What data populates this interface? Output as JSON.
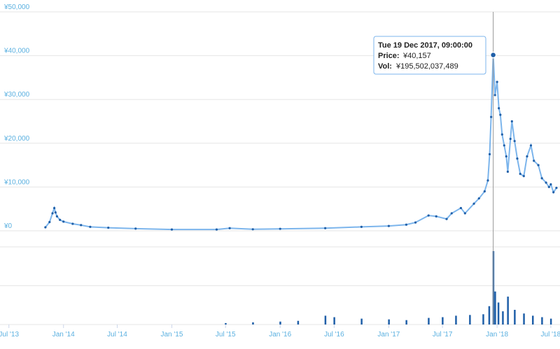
{
  "chart_data": [
    {
      "type": "line",
      "series": [
        {
          "name": "Price",
          "x": [
            "2013-11-01",
            "2013-11-15",
            "2013-11-25",
            "2013-12-01",
            "2013-12-05",
            "2013-12-10",
            "2013-12-20",
            "2014-01-01",
            "2014-02-01",
            "2014-03-01",
            "2014-04-01",
            "2014-06-01",
            "2014-09-01",
            "2015-01-01",
            "2015-06-01",
            "2015-07-15",
            "2015-10-01",
            "2016-01-01",
            "2016-06-01",
            "2016-10-01",
            "2017-01-01",
            "2017-03-01",
            "2017-04-01",
            "2017-05-15",
            "2017-06-10",
            "2017-07-15",
            "2017-08-01",
            "2017-09-01",
            "2017-09-15",
            "2017-10-15",
            "2017-11-01",
            "2017-11-20",
            "2017-12-01",
            "2017-12-07",
            "2017-12-12",
            "2017-12-19",
            "2017-12-25",
            "2018-01-01",
            "2018-01-07",
            "2018-01-12",
            "2018-01-18",
            "2018-01-25",
            "2018-02-01",
            "2018-02-06",
            "2018-02-15",
            "2018-02-20",
            "2018-03-01",
            "2018-03-10",
            "2018-03-20",
            "2018-04-01",
            "2018-04-12",
            "2018-04-25",
            "2018-05-05",
            "2018-05-20",
            "2018-06-01",
            "2018-06-15",
            "2018-06-25",
            "2018-07-01",
            "2018-07-10",
            "2018-07-20"
          ],
          "y": [
            800,
            2000,
            4000,
            5200,
            4200,
            3300,
            2500,
            2100,
            1600,
            1300,
            900,
            700,
            500,
            300,
            300,
            600,
            350,
            450,
            600,
            900,
            1100,
            1400,
            1900,
            3500,
            3300,
            2700,
            4000,
            5200,
            4000,
            6200,
            7400,
            9000,
            11500,
            17500,
            26000,
            40157,
            31000,
            34000,
            28000,
            26500,
            22000,
            19500,
            17000,
            13500,
            21000,
            25000,
            20500,
            16500,
            13000,
            12500,
            17000,
            19500,
            16000,
            15000,
            12000,
            11000,
            10000,
            10600,
            8800,
            9800
          ],
          "marker": "circle"
        }
      ],
      "ylabel": "",
      "ylim": [
        0,
        50000
      ],
      "yticks": [
        "¥0",
        "¥10,000",
        "¥20,000",
        "¥30,000",
        "¥40,000",
        "¥50,000"
      ],
      "xlim": [
        "2013-06-01",
        "2018-08-01"
      ],
      "xticks": [
        {
          "date": "2013-07-01",
          "label": "Jul '13"
        },
        {
          "date": "2014-01-01",
          "label": "Jan '14"
        },
        {
          "date": "2014-07-01",
          "label": "Jul '14"
        },
        {
          "date": "2015-01-01",
          "label": "Jan '15"
        },
        {
          "date": "2015-07-01",
          "label": "Jul '15"
        },
        {
          "date": "2016-01-01",
          "label": "Jan '16"
        },
        {
          "date": "2016-07-01",
          "label": "Jul '16"
        },
        {
          "date": "2017-01-01",
          "label": "Jan '17"
        },
        {
          "date": "2017-07-01",
          "label": "Jul '17"
        },
        {
          "date": "2018-01-01",
          "label": "Jan '18"
        },
        {
          "date": "2018-07-01",
          "label": "Jul '18"
        }
      ],
      "grid": true,
      "color": "#1f5fa8"
    },
    {
      "type": "bar",
      "series": [
        {
          "name": "Vol",
          "x": [
            "2015-07-01",
            "2015-10-01",
            "2016-01-01",
            "2016-03-01",
            "2016-06-01",
            "2016-07-01",
            "2016-10-01",
            "2017-01-01",
            "2017-03-01",
            "2017-05-15",
            "2017-07-01",
            "2017-08-15",
            "2017-10-01",
            "2017-11-15",
            "2017-12-05",
            "2017-12-19",
            "2017-12-25",
            "2018-01-05",
            "2018-01-20",
            "2018-02-06",
            "2018-03-01",
            "2018-04-01",
            "2018-05-01",
            "2018-06-01",
            "2018-07-01"
          ],
          "values": [
            0.02,
            0.03,
            0.04,
            0.05,
            0.12,
            0.1,
            0.08,
            0.07,
            0.06,
            0.09,
            0.1,
            0.12,
            0.13,
            0.14,
            0.25,
            1.0,
            0.45,
            0.3,
            0.18,
            0.38,
            0.2,
            0.15,
            0.12,
            0.1,
            0.08
          ]
        }
      ],
      "color": "#1f5fa8"
    }
  ],
  "tooltip": {
    "title": "Tue 19 Dec 2017, 09:00:00",
    "price_label": "Price:",
    "price_value": "¥40,157",
    "vol_label": "Vol:",
    "vol_value": "¥195,502,037,489"
  }
}
